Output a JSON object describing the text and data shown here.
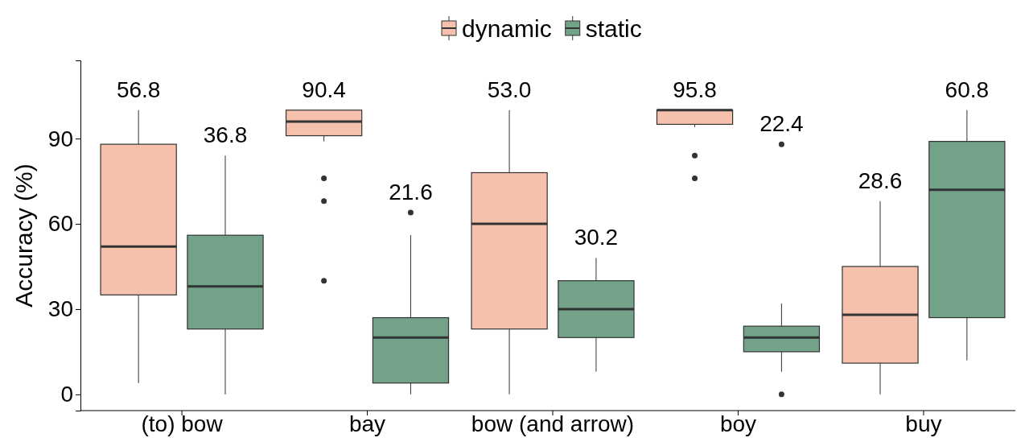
{
  "chart_data": {
    "type": "box",
    "ylabel": "Accuracy (%)",
    "categories": [
      "(to) bow",
      "bay",
      "bow (and arrow)",
      "boy",
      "buy"
    ],
    "ylim": [
      -5.7,
      117.5
    ],
    "yticks": [
      0,
      30,
      60,
      90
    ],
    "legend": "top",
    "series": [
      {
        "name": "dynamic",
        "color": "#f5c1ad",
        "boxes": [
          {
            "low": 4,
            "q1": 35,
            "median": 52,
            "q3": 88,
            "high": 100
          },
          {
            "low": 89,
            "q1": 91,
            "median": 96,
            "q3": 100,
            "high": 100,
            "outliers": [
              76,
              68,
              40
            ]
          },
          {
            "low": 0,
            "q1": 23,
            "median": 60,
            "q3": 78,
            "high": 100
          },
          {
            "low": 94,
            "q1": 95,
            "median": 100,
            "q3": 100,
            "high": 100,
            "outliers": [
              84,
              76
            ]
          },
          {
            "low": 0,
            "q1": 11,
            "median": 28,
            "q3": 45,
            "high": 68
          }
        ]
      },
      {
        "name": "static",
        "color": "#72a389",
        "boxes": [
          {
            "low": 0,
            "q1": 23,
            "median": 38,
            "q3": 56,
            "high": 84
          },
          {
            "low": 0,
            "q1": 4,
            "median": 20,
            "q3": 27,
            "high": 56,
            "outliers": [
              64
            ]
          },
          {
            "low": 8,
            "q1": 20,
            "median": 30,
            "q3": 40,
            "high": 48
          },
          {
            "low": 8,
            "q1": 15,
            "median": 20,
            "q3": 24,
            "high": 32,
            "outliers": [
              88,
              0
            ]
          },
          {
            "low": 12,
            "q1": 27,
            "median": 72,
            "q3": 89,
            "high": 100
          }
        ]
      }
    ],
    "annotations": [
      "56.8",
      "36.8",
      "90.4",
      "21.6",
      "53.0",
      "30.2",
      "95.8",
      "22.4",
      "28.6",
      "60.8"
    ]
  }
}
